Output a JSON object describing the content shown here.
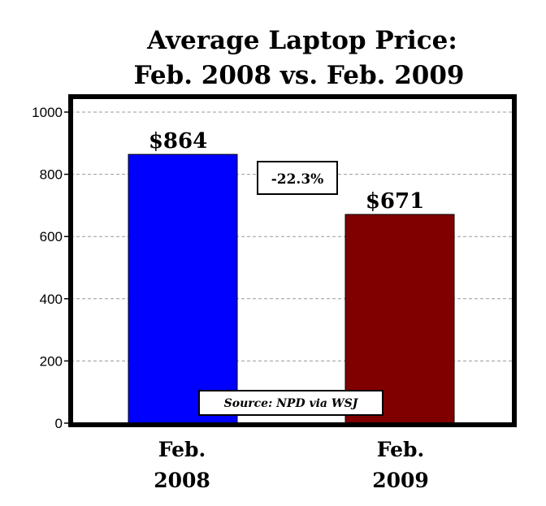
{
  "chart_data": {
    "type": "bar",
    "title": [
      "Average Laptop Price:",
      "Feb. 2008 vs. Feb. 2009"
    ],
    "categories": [
      [
        "Feb.",
        "2008"
      ],
      [
        "Feb.",
        "2009"
      ]
    ],
    "values": [
      864,
      671
    ],
    "value_labels": [
      "$864",
      "$671"
    ],
    "bar_colors": [
      "#0000ff",
      "#800000"
    ],
    "yticks": [
      0,
      200,
      400,
      600,
      800,
      1000
    ],
    "ylim": [
      0,
      1000
    ],
    "grid": true,
    "annotations": {
      "change": "-22.3%",
      "source": "Source: NPD via WSJ"
    }
  }
}
